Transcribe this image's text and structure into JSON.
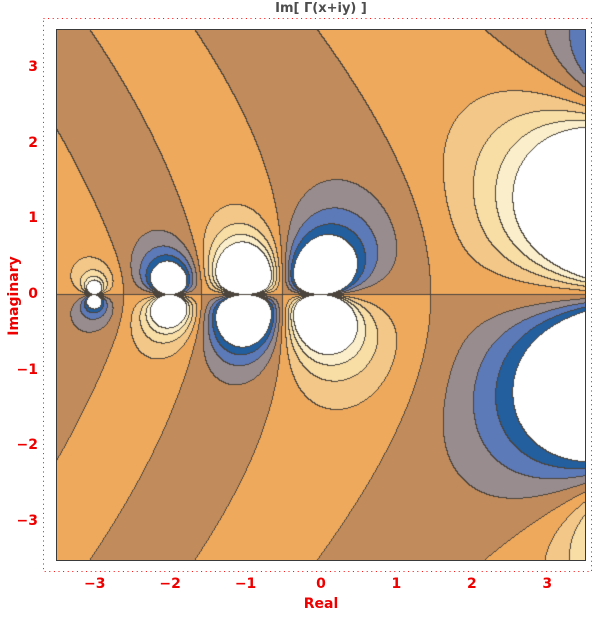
{
  "figure": {
    "title": "Im[ Γ(x+iy) ]",
    "title_color": "#4d4d4d",
    "background_color": "#ffffff",
    "dotted_border_color": "#ff0000",
    "frame_color": "#3a3a3a"
  },
  "axes": {
    "xlabel": "Real",
    "ylabel": "Imaginary",
    "label_color": "#ee0000",
    "tick_label_color": "#ee0000",
    "x_tick_values": [
      -3,
      -2,
      -1,
      0,
      1,
      2,
      3
    ],
    "x_tick_labels": [
      "−3",
      "−2",
      "−1",
      "0",
      "1",
      "2",
      "3"
    ],
    "y_tick_values": [
      3,
      2,
      1,
      0,
      -1,
      -2,
      -3
    ],
    "y_tick_labels": [
      "3",
      "2",
      "1",
      "0",
      "−1",
      "−2",
      "−3"
    ]
  },
  "chart_data": {
    "type": "heatmap",
    "subtype": "filled-contour",
    "title": "Im[ Γ(x+iy) ]",
    "xlabel": "Real",
    "ylabel": "Imaginary",
    "function": "Im(Gamma(x+iy))",
    "x_range": [
      -3.5,
      3.5
    ],
    "y_range": [
      -3.5,
      3.5
    ],
    "contour_levels": [
      -0.8,
      -0.6,
      -0.4,
      -0.2,
      0,
      0.2,
      0.4,
      0.6,
      0.8
    ],
    "band_colors": [
      "#235e9e",
      "#5c79b8",
      "#998c8f",
      "#c28b5b",
      "#efa95c",
      "#f3c787",
      "#f8dda5",
      "#fbefcb"
    ],
    "out_of_range_color": "#ffffff",
    "contour_line_color": "#4a443c",
    "grid": false,
    "legend": false,
    "notes": "Poles of Gamma at x=0,-1,-2,-3 on the real axis; warm bands = positive Im, cool bands = negative Im, white = |Im| beyond 0.8"
  }
}
